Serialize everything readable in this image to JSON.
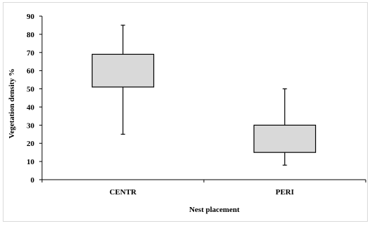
{
  "chart_data": {
    "type": "boxplot",
    "title": "",
    "xlabel": "Nest placement",
    "ylabel": "Vegetation density %",
    "ylim": [
      0,
      90
    ],
    "yticks": [
      0,
      10,
      20,
      30,
      40,
      50,
      60,
      70,
      80,
      90
    ],
    "categories": [
      "CENTR",
      "PERI"
    ],
    "boxes": [
      {
        "category": "CENTR",
        "min": 25,
        "q1": 51,
        "q3": 69,
        "max": 85
      },
      {
        "category": "PERI",
        "min": 8,
        "q1": 15,
        "q3": 30,
        "max": 50
      }
    ],
    "box_fill": "#d9d9d9",
    "line_color": "#000000",
    "grid": false,
    "legend": "none"
  }
}
